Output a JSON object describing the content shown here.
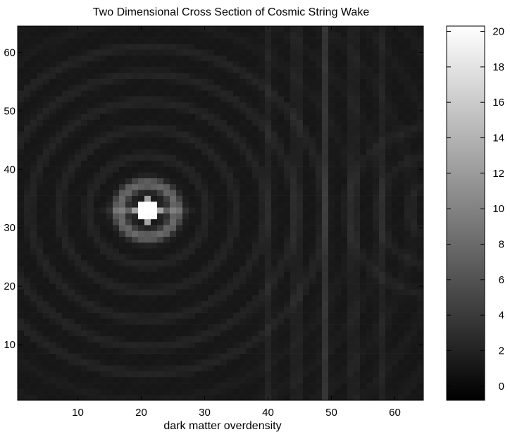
{
  "chart_data": {
    "type": "heatmap",
    "title": "Two Dimensional Cross Section of Cosmic String Wake",
    "xlabel": "dark matter overdensity",
    "ylabel": "",
    "grid_size": [
      64,
      64
    ],
    "xlim": [
      0.5,
      64.5
    ],
    "ylim": [
      0.5,
      64.5
    ],
    "x_ticks": [
      10,
      20,
      30,
      40,
      50,
      60
    ],
    "y_ticks": [
      10,
      20,
      30,
      40,
      50,
      60
    ],
    "colormap": "gray",
    "color_range": [
      -0.8,
      20.3
    ],
    "colorbar_ticks": [
      0,
      2,
      4,
      6,
      8,
      10,
      12,
      14,
      16,
      18,
      20
    ],
    "grid": false,
    "legend": "none",
    "features": {
      "peak": {
        "x": 21,
        "y": 33,
        "value": 20
      },
      "halo_radius": 4.5,
      "secondary_ridge_x": 49
    }
  },
  "colors": {
    "background": "#ffffff",
    "axis": "#000000",
    "text": "#000000"
  }
}
